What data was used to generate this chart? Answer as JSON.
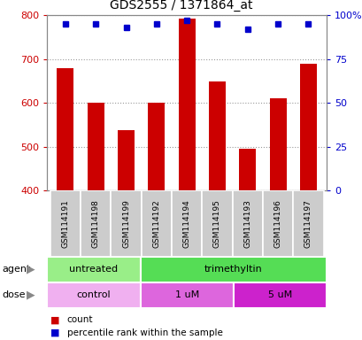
{
  "title": "GDS2555 / 1371864_at",
  "samples": [
    "GSM114191",
    "GSM114198",
    "GSM114199",
    "GSM114192",
    "GSM114194",
    "GSM114195",
    "GSM114193",
    "GSM114196",
    "GSM114197"
  ],
  "counts": [
    680,
    600,
    538,
    600,
    793,
    648,
    495,
    610,
    690
  ],
  "percentile_ranks": [
    95,
    95,
    93,
    95,
    97,
    95,
    92,
    95,
    95
  ],
  "y_min": 400,
  "y_max": 800,
  "y_ticks": [
    400,
    500,
    600,
    700,
    800
  ],
  "right_y_ticks": [
    0,
    25,
    50,
    75,
    100
  ],
  "right_y_labels": [
    "0",
    "25",
    "50",
    "75",
    "100%"
  ],
  "bar_color": "#cc0000",
  "dot_color": "#0000cc",
  "agent_groups": [
    {
      "label": "untreated",
      "start": 0,
      "end": 3,
      "color": "#99ee88"
    },
    {
      "label": "trimethyltin",
      "start": 3,
      "end": 9,
      "color": "#55dd55"
    }
  ],
  "dose_groups": [
    {
      "label": "control",
      "start": 0,
      "end": 3,
      "color": "#f0b0f0"
    },
    {
      "label": "1 uM",
      "start": 3,
      "end": 6,
      "color": "#dd66dd"
    },
    {
      "label": "5 uM",
      "start": 6,
      "end": 9,
      "color": "#cc22cc"
    }
  ],
  "legend_count_color": "#cc0000",
  "legend_dot_color": "#0000cc",
  "left_tick_color": "#cc0000",
  "right_tick_color": "#0000cc",
  "grid_color": "#999999",
  "label_area_color": "#cccccc",
  "background_color": "#ffffff"
}
